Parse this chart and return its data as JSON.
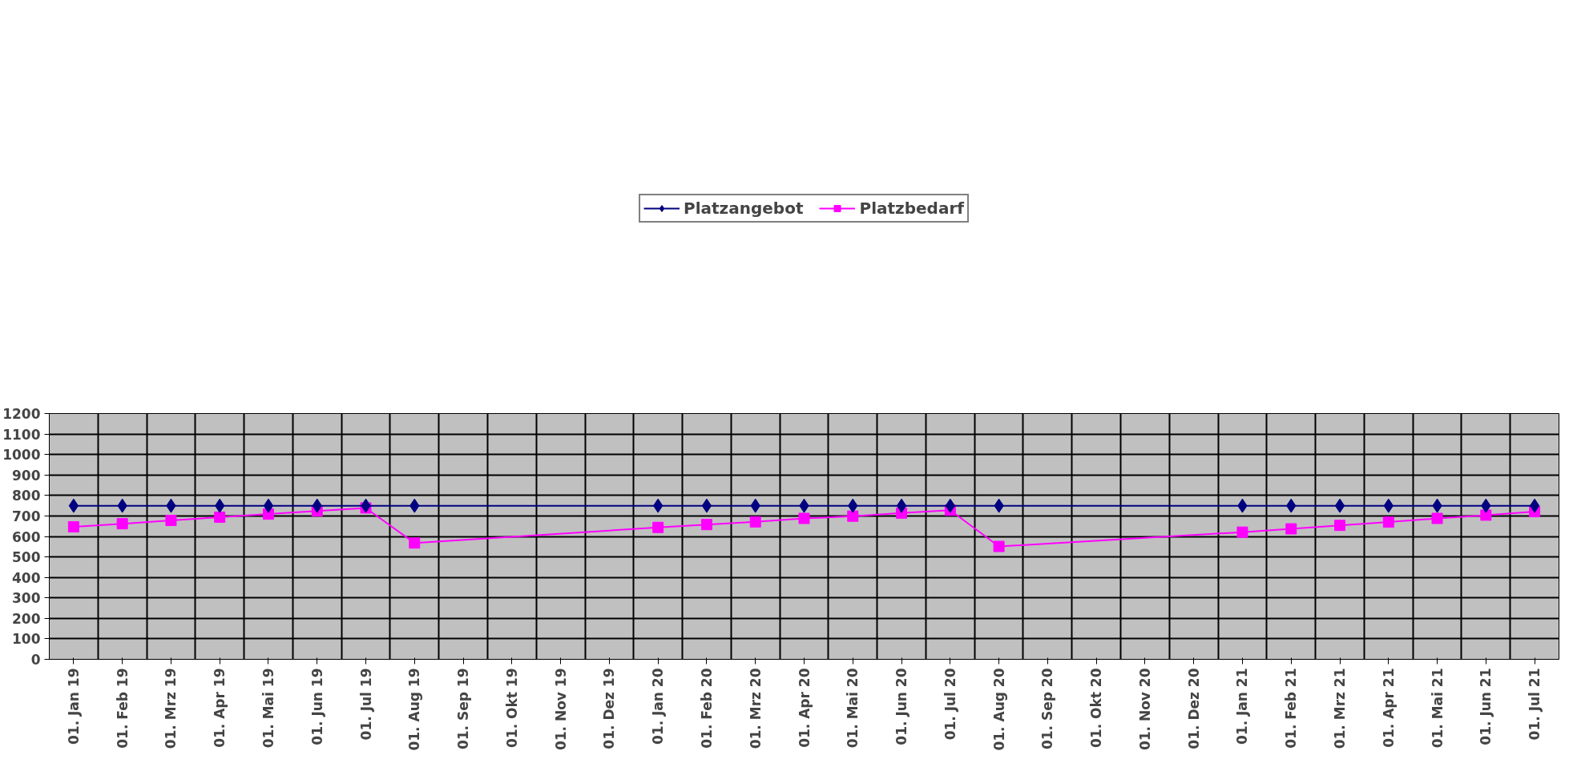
{
  "chart_data": {
    "type": "line",
    "categories": [
      "01. Jan 19",
      "01. Feb 19",
      "01. Mrz 19",
      "01. Apr 19",
      "01. Mai 19",
      "01. Jun 19",
      "01. Jul 19",
      "01. Aug 19",
      "01. Sep 19",
      "01. Okt 19",
      "01. Nov 19",
      "01. Dez 19",
      "01. Jan 20",
      "01. Feb 20",
      "01. Mrz 20",
      "01. Apr 20",
      "01. Mai 20",
      "01. Jun 20",
      "01. Jul 20",
      "01. Aug 20",
      "01. Sep 20",
      "01. Okt 20",
      "01. Nov 20",
      "01. Dez 20",
      "01. Jan 21",
      "01. Feb 21",
      "01. Mrz 21",
      "01. Apr 21",
      "01. Mai 21",
      "01. Jun 21",
      "01. Jul 21"
    ],
    "series": [
      {
        "name": "Platzangebot",
        "color": "#000080",
        "marker": "diamond",
        "values": [
          750,
          750,
          750,
          750,
          750,
          750,
          750,
          750,
          null,
          null,
          null,
          null,
          750,
          750,
          750,
          750,
          750,
          750,
          750,
          750,
          null,
          null,
          null,
          null,
          750,
          750,
          750,
          750,
          750,
          750,
          750
        ]
      },
      {
        "name": "Platzbedarf",
        "color": "#ff00ff",
        "marker": "square",
        "values": [
          647,
          662,
          678,
          694,
          709,
          724,
          739,
          568,
          null,
          null,
          null,
          null,
          644,
          658,
          671,
          688,
          699,
          714,
          728,
          551,
          null,
          null,
          null,
          null,
          621,
          637,
          654,
          670,
          688,
          704,
          721
        ]
      }
    ],
    "ylim": [
      0,
      1200
    ],
    "yticks": [
      0,
      100,
      200,
      300,
      400,
      500,
      600,
      700,
      800,
      900,
      1000,
      1100,
      1200
    ],
    "grid": true,
    "legend": "top",
    "line_style": "solid"
  }
}
